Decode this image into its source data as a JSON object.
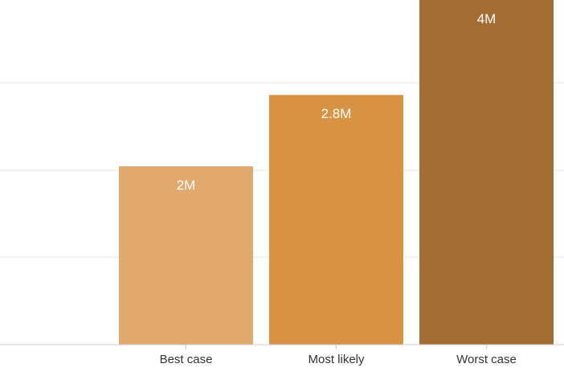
{
  "chart_data": {
    "type": "bar",
    "categories": [
      "Best case",
      "Most likely",
      "Worst case"
    ],
    "values": [
      2000000,
      2800000,
      4000000
    ],
    "data_labels": [
      "2M",
      "2.8M",
      "4M"
    ],
    "title": "",
    "xlabel": "",
    "ylabel": "",
    "ylim": [
      0,
      3900000
    ],
    "grid": true,
    "colors": [
      "#e2a96e",
      "#d89243",
      "#a36c32"
    ]
  }
}
